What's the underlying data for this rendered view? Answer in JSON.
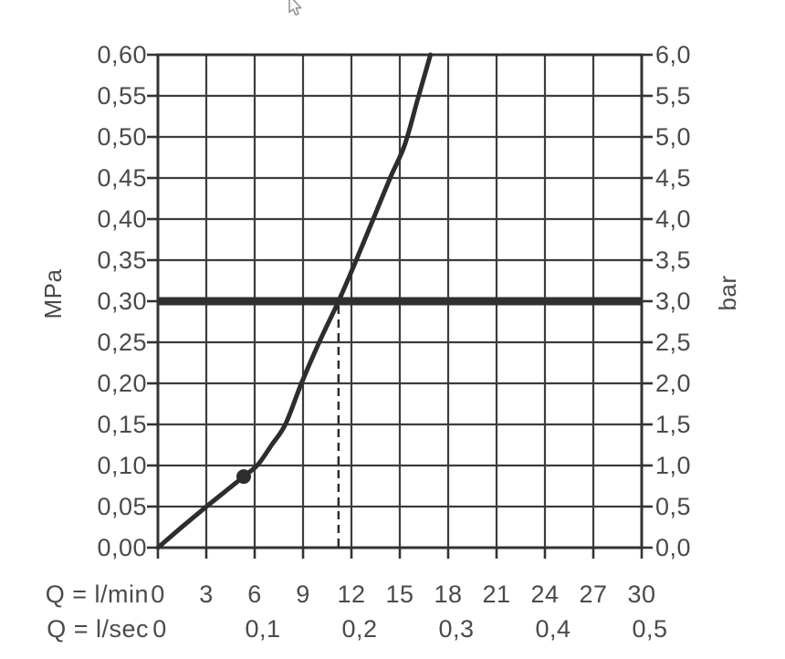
{
  "colors": {
    "background": "#ffffff",
    "grid": "#3c3c3c",
    "border": "#333333",
    "curve": "#2d2d2d",
    "reference_line": "#303030",
    "text": "#4a4a4a",
    "cursor_outline": "#8a8a8a",
    "cursor_fill": "#fcfcfc"
  },
  "cursor": {
    "type": "arrow-pointer"
  },
  "chart_data": {
    "type": "line",
    "grid": true,
    "legend": "none",
    "y_left": {
      "unit": "MPa",
      "min": 0,
      "max": 0.6,
      "step": 0.05,
      "tick_labels": [
        "0,60",
        "0,55",
        "0,50",
        "0,45",
        "0,40",
        "0,35",
        "0,30",
        "0,25",
        "0,20",
        "0,15",
        "0,10",
        "0,05",
        "0,00"
      ]
    },
    "y_right": {
      "unit": "bar",
      "min": 0,
      "max": 6.0,
      "step": 0.5,
      "tick_labels": [
        "6,0",
        "5,5",
        "5,0",
        "4,5",
        "4,0",
        "3,5",
        "3,0",
        "2,5",
        "2,0",
        "1,5",
        "1,0",
        "0,5",
        "0,0"
      ]
    },
    "x_lmin": {
      "label": "Q = l/min",
      "min": 0,
      "max": 30,
      "step": 3,
      "tick_labels": [
        "0",
        "3",
        "6",
        "9",
        "12",
        "15",
        "18",
        "21",
        "24",
        "27",
        "30"
      ]
    },
    "x_lsec": {
      "label": "Q = l/sec",
      "ticks": [
        {
          "q": 0,
          "label": "0"
        },
        {
          "q": 6,
          "label": "0,1"
        },
        {
          "q": 12,
          "label": "0,2"
        },
        {
          "q": 18,
          "label": "0,3"
        },
        {
          "q": 24,
          "label": "0,4"
        },
        {
          "q": 30,
          "label": "0,5"
        }
      ]
    },
    "series": [
      {
        "name": "flow-pressure-curve",
        "points_q_lmin_p_mpa": [
          [
            0,
            0
          ],
          [
            1.6,
            0.027
          ],
          [
            3.2,
            0.053
          ],
          [
            5.32,
            0.0865
          ],
          [
            6.2,
            0.101
          ],
          [
            7.05,
            0.125
          ],
          [
            7.9,
            0.15
          ],
          [
            8.9,
            0.2
          ],
          [
            10.0,
            0.25
          ],
          [
            11.2,
            0.3
          ],
          [
            12.3,
            0.35
          ],
          [
            13.35,
            0.4
          ],
          [
            14.4,
            0.45
          ],
          [
            15.3,
            0.49
          ],
          [
            16.1,
            0.545
          ],
          [
            16.9,
            0.6
          ]
        ]
      }
    ],
    "marker_point": {
      "q_lmin": 5.32,
      "p_mpa": 0.0865
    },
    "pressure_reference_line": {
      "p_mpa": 0.3,
      "p_bar": 3.0
    },
    "dashed_guide_line": {
      "q_lmin": 11.2,
      "from_p_mpa": 0.3,
      "to_p_mpa": 0
    }
  }
}
